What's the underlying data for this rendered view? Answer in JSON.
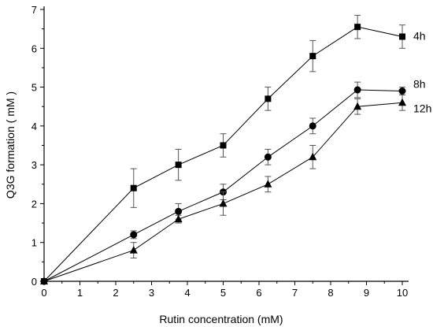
{
  "chart_data": {
    "type": "line",
    "xlabel": "Rutin  concentration (mM)",
    "ylabel": "Q3G formation ( mM )",
    "xlim": [
      0,
      10
    ],
    "ylim": [
      0,
      7
    ],
    "x_ticks": [
      "0",
      "1",
      "2",
      "3",
      "4",
      "5",
      "6",
      "7",
      "8",
      "9",
      "10"
    ],
    "y_ticks": [
      "0",
      "1",
      "2",
      "3",
      "4",
      "5",
      "6",
      "7"
    ],
    "grid": false,
    "legend": "none",
    "series": [
      {
        "name": "4h",
        "marker": "square",
        "x": [
          0,
          2.5,
          3.75,
          5,
          6.25,
          7.5,
          8.75,
          10
        ],
        "y": [
          0,
          2.4,
          3.0,
          3.5,
          4.7,
          5.8,
          6.55,
          6.3
        ],
        "err": [
          0,
          0.5,
          0.4,
          0.3,
          0.3,
          0.4,
          0.3,
          0.3
        ]
      },
      {
        "name": "8h",
        "marker": "circle",
        "x": [
          0,
          2.5,
          3.75,
          5,
          6.25,
          7.5,
          8.75,
          10
        ],
        "y": [
          0,
          1.2,
          1.8,
          2.3,
          3.2,
          4.0,
          4.93,
          4.9
        ],
        "err": [
          0,
          0.1,
          0.2,
          0.2,
          0.2,
          0.2,
          0.2,
          0.1
        ]
      },
      {
        "name": "12h",
        "marker": "triangle",
        "x": [
          0,
          2.5,
          3.75,
          5,
          6.25,
          7.5,
          8.75,
          10
        ],
        "y": [
          0,
          0.8,
          1.6,
          2.0,
          2.5,
          3.2,
          4.5,
          4.6
        ],
        "err": [
          0,
          0.2,
          0.1,
          0.3,
          0.2,
          0.3,
          0.2,
          0.2
        ]
      }
    ]
  }
}
